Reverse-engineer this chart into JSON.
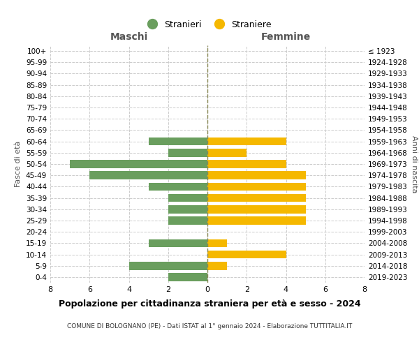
{
  "age_groups": [
    "100+",
    "95-99",
    "90-94",
    "85-89",
    "80-84",
    "75-79",
    "70-74",
    "65-69",
    "60-64",
    "55-59",
    "50-54",
    "45-49",
    "40-44",
    "35-39",
    "30-34",
    "25-29",
    "20-24",
    "15-19",
    "10-14",
    "5-9",
    "0-4"
  ],
  "birth_years": [
    "≤ 1923",
    "1924-1928",
    "1929-1933",
    "1934-1938",
    "1939-1943",
    "1944-1948",
    "1949-1953",
    "1954-1958",
    "1959-1963",
    "1964-1968",
    "1969-1973",
    "1974-1978",
    "1979-1983",
    "1984-1988",
    "1989-1993",
    "1994-1998",
    "1999-2003",
    "2004-2008",
    "2009-2013",
    "2014-2018",
    "2019-2023"
  ],
  "maschi": [
    0,
    0,
    0,
    0,
    0,
    0,
    0,
    0,
    3,
    2,
    7,
    6,
    3,
    2,
    2,
    2,
    0,
    3,
    0,
    4,
    2
  ],
  "femmine": [
    0,
    0,
    0,
    0,
    0,
    0,
    0,
    0,
    4,
    2,
    4,
    5,
    5,
    5,
    5,
    5,
    0,
    1,
    4,
    1,
    0
  ],
  "color_maschi": "#6a9e5e",
  "color_femmine": "#f5b800",
  "title": "Popolazione per cittadinanza straniera per età e sesso - 2024",
  "subtitle": "COMUNE DI BOLOGNANO (PE) - Dati ISTAT al 1° gennaio 2024 - Elaborazione TUTTITALIA.IT",
  "legend_maschi": "Stranieri",
  "legend_femmine": "Straniere",
  "xlabel_left": "Maschi",
  "xlabel_right": "Femmine",
  "ylabel_left": "Fasce di età",
  "ylabel_right": "Anni di nascita",
  "xlim": 8,
  "background_color": "#ffffff",
  "grid_color": "#cccccc",
  "center_line_color": "#888855"
}
